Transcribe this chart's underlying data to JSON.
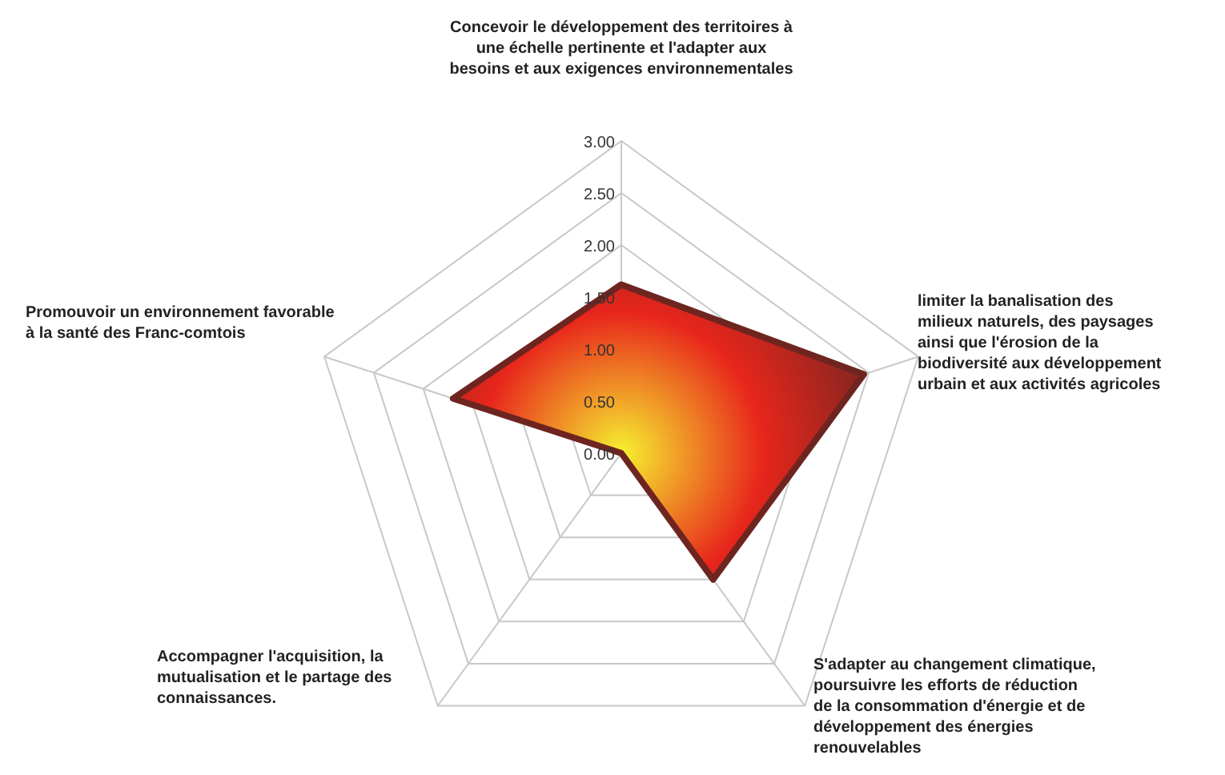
{
  "chart_data": {
    "type": "radar",
    "categories": [
      "Concevoir le développement des territoires à une échelle pertinente et l'adapter aux besoins et aux exigences environnementales",
      "limiter la banalisation des milieux naturels, des paysages ainsi que l'érosion de la biodiversité aux développement urbain et aux activités agricoles",
      "S'adapter au changement climatique, poursuivre les efforts de réduction de la consommation d'énergie et de développement des énergies renouvelables",
      "Accompagner l'acquisition, la mutualisation et le partage des connaissances.",
      "Promouvoir un environnement favorable à la santé des Franc-comtois"
    ],
    "series": [
      {
        "color": "#6e2520",
        "values": [
          1.62,
          2.45,
          1.5,
          0,
          1.7
        ]
      }
    ],
    "ylim": [
      0,
      3
    ],
    "yticks": [
      {
        "value": 0,
        "label": "0.00"
      },
      {
        "value": 0.5,
        "label": "0.50"
      },
      {
        "value": 1,
        "label": "1.00"
      },
      {
        "value": 1.5,
        "label": "1.50"
      },
      {
        "value": 2,
        "label": "2.00"
      },
      {
        "value": 2.5,
        "label": "2.50"
      },
      {
        "value": 3,
        "label": "3.00"
      }
    ],
    "grid": true
  }
}
